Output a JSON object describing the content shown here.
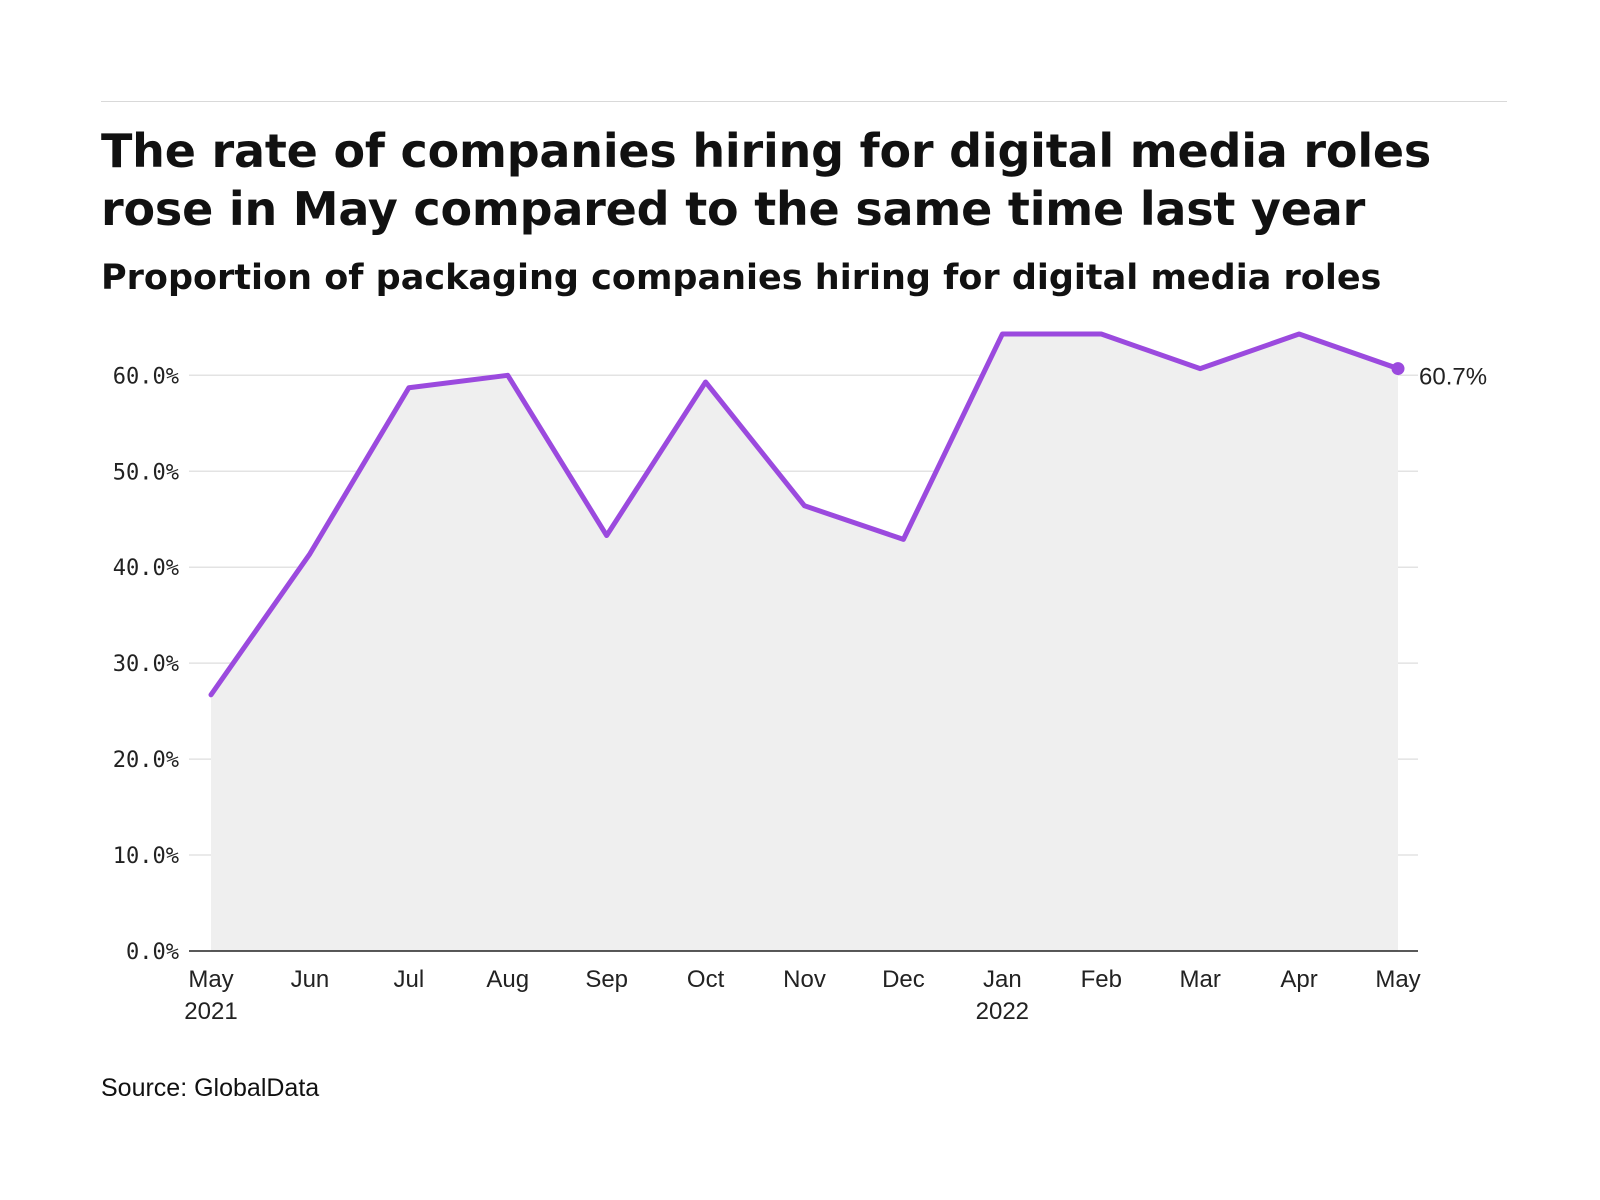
{
  "chart_data": {
    "type": "line",
    "title": "The rate of companies hiring for digital media roles rose in May compared to the same time last year",
    "subtitle": "Proportion of packaging companies hiring for digital media roles",
    "source": "Source: GlobalData",
    "x": [
      "May 2021",
      "Jun 2021",
      "Jul 2021",
      "Aug 2021",
      "Sep 2021",
      "Oct 2021",
      "Nov 2021",
      "Dec 2021",
      "Jan 2022",
      "Feb 2022",
      "Mar 2022",
      "Apr 2022",
      "May 2022"
    ],
    "x_tick_labels": [
      {
        "month": "May",
        "year": "2021"
      },
      {
        "month": "Jun",
        "year": ""
      },
      {
        "month": "Jul",
        "year": ""
      },
      {
        "month": "Aug",
        "year": ""
      },
      {
        "month": "Sep",
        "year": ""
      },
      {
        "month": "Oct",
        "year": ""
      },
      {
        "month": "Nov",
        "year": ""
      },
      {
        "month": "Dec",
        "year": ""
      },
      {
        "month": "Jan",
        "year": "2022"
      },
      {
        "month": "Feb",
        "year": ""
      },
      {
        "month": "Mar",
        "year": ""
      },
      {
        "month": "Apr",
        "year": ""
      },
      {
        "month": "May",
        "year": ""
      }
    ],
    "series": [
      {
        "values": [
          26.7,
          41.4,
          58.7,
          60.0,
          43.3,
          59.3,
          46.4,
          42.9,
          64.3,
          64.3,
          60.7,
          64.3,
          60.7
        ]
      }
    ],
    "y_ticks": [
      0,
      10,
      20,
      30,
      40,
      50,
      60
    ],
    "y_tick_labels": [
      "0.0%",
      "10.0%",
      "20.0%",
      "30.0%",
      "40.0%",
      "50.0%",
      "60.0%"
    ],
    "ylim": [
      0,
      66
    ],
    "last_value_label": "60.7%",
    "grid": true,
    "line_color": "#9b4ade",
    "area_color": "#efefef",
    "grid_color": "#e3e3e3"
  }
}
